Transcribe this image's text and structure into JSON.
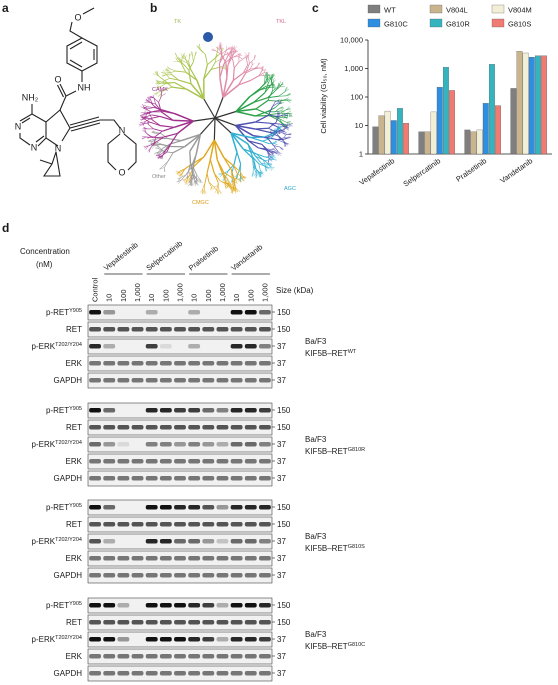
{
  "panel_labels": [
    "a",
    "b",
    "c",
    "d"
  ],
  "structure": {
    "atoms": [
      "O",
      "O",
      "NH",
      "NH₂",
      "N",
      "N",
      "N",
      "N",
      "O"
    ]
  },
  "kinome": {
    "groups": [
      "TK",
      "TKL",
      "STE",
      "CK1",
      "AGC",
      "CMGC",
      "Other",
      "CAMK"
    ]
  },
  "chart_data": {
    "type": "bar",
    "y_label": "Cell viability (GI₅₀, nM)",
    "categories": [
      "Vepafestinib",
      "Selpercatinib",
      "Pralsetinib",
      "Vandetanib"
    ],
    "series": [
      {
        "name": "WT",
        "color": "#7f7f7f",
        "values": [
          9,
          6,
          7,
          200
        ]
      },
      {
        "name": "V804L",
        "color": "#c9b48e",
        "values": [
          22,
          6,
          6,
          4000
        ]
      },
      {
        "name": "V804M",
        "color": "#f3efd6",
        "values": [
          32,
          30,
          7,
          3500
        ]
      },
      {
        "name": "G810C",
        "color": "#2e8ee0",
        "values": [
          15,
          220,
          60,
          2500
        ]
      },
      {
        "name": "G810R",
        "color": "#35b4bf",
        "values": [
          40,
          1100,
          1400,
          2800
        ]
      },
      {
        "name": "G810S",
        "color": "#f07b72",
        "values": [
          12,
          170,
          50,
          2800
        ]
      }
    ],
    "log_scale": true,
    "ylim": [
      1,
      10000
    ],
    "yticks": [
      1,
      10,
      100,
      {
        "value": 1000,
        "label": "1,000"
      },
      {
        "value": 10000,
        "label": "10,000"
      }
    ],
    "legend": "top"
  },
  "blots": {
    "concentration_label": [
      "Concentration",
      "(nM)"
    ],
    "drugs": [
      "Vepafestinib",
      "Selpercatinib",
      "Pralsetinib",
      "Vandetanib"
    ],
    "lanes": [
      "Control",
      "10",
      "100",
      "1,000",
      "10",
      "100",
      "1,000",
      "10",
      "100",
      "1,000",
      "10",
      "100",
      "1,000"
    ],
    "size_label": "Size (kDa)",
    "blocks": [
      {
        "rows": [
          {
            "name": "p-RET",
            "sup": "Y905",
            "size": 150
          },
          {
            "name": "RET",
            "size": 150
          },
          {
            "name": "p-ERK",
            "sup": "T202/Y204",
            "size": 37
          },
          {
            "name": "ERK",
            "size": 37
          },
          {
            "name": "GAPDH",
            "size": 37
          }
        ],
        "cell_line": "Ba/F3",
        "construct": "KIF5B–RET",
        "variant": "WT"
      },
      {
        "rows": [
          {
            "name": "p-RET",
            "sup": "Y905",
            "size": 150
          },
          {
            "name": "RET",
            "size": 150
          },
          {
            "name": "p-ERK",
            "sup": "T202/Y204",
            "size": 37
          },
          {
            "name": "ERK",
            "size": 37
          },
          {
            "name": "GAPDH",
            "size": 37
          }
        ],
        "cell_line": "Ba/F3",
        "construct": "KIF5B–RET",
        "variant": "G810R"
      },
      {
        "rows": [
          {
            "name": "p-RET",
            "sup": "Y905",
            "size": 150
          },
          {
            "name": "RET",
            "size": 150
          },
          {
            "name": "p-ERK",
            "sup": "T202/Y204",
            "size": 37
          },
          {
            "name": "ERK",
            "size": 37
          },
          {
            "name": "GAPDH",
            "size": 37
          }
        ],
        "cell_line": "Ba/F3",
        "construct": "KIF5B–RET",
        "variant": "G810S"
      },
      {
        "rows": [
          {
            "name": "p-RET",
            "sup": "Y905",
            "size": 150
          },
          {
            "name": "RET",
            "size": 150
          },
          {
            "name": "p-ERK",
            "sup": "T202/Y204",
            "size": 37
          },
          {
            "name": "ERK",
            "size": 37
          },
          {
            "name": "GAPDH",
            "size": 37
          }
        ],
        "cell_line": "Ba/F3",
        "construct": "KIF5B–RET",
        "variant": "G810C"
      }
    ]
  }
}
